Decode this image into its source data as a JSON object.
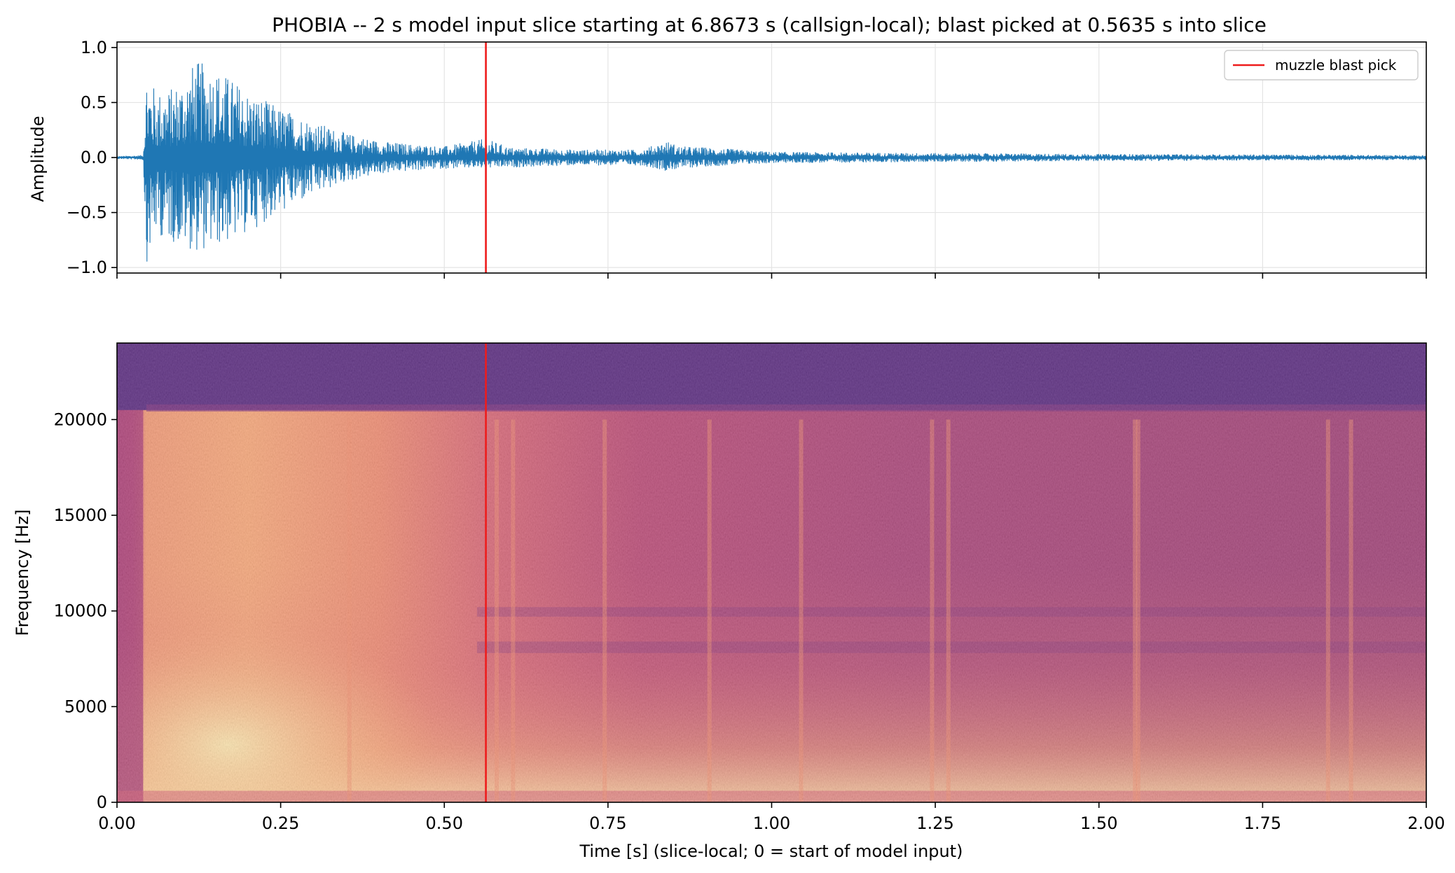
{
  "title": "PHOBIA  --  2 s model input slice starting at 6.8673 s (callsign-local); blast picked at 0.5635 s into slice",
  "colors": {
    "waveform": "#1f77b4",
    "pick_line": "#ee1c1c",
    "grid": "#e4e4e4",
    "spectrogram_colormap": "magma"
  },
  "chart_data": [
    {
      "type": "line",
      "name": "waveform",
      "ylabel": "Amplitude",
      "xlim": [
        0,
        2.0
      ],
      "ylim": [
        -1.05,
        1.05
      ],
      "yticks": [
        1.0,
        0.5,
        0.0,
        -0.5,
        -1.0
      ],
      "ytick_labels": [
        "1.0",
        "0.5",
        "0.0",
        "−0.5",
        "−1.0"
      ],
      "xticks": [
        0,
        0.25,
        0.5,
        0.75,
        1.0,
        1.25,
        1.5,
        1.75,
        2.0
      ],
      "grid": true,
      "envelope": {
        "x": [
          0.0,
          0.02,
          0.04,
          0.045,
          0.06,
          0.08,
          0.1,
          0.12,
          0.15,
          0.18,
          0.2,
          0.25,
          0.3,
          0.35,
          0.4,
          0.45,
          0.5,
          0.5635,
          0.6,
          0.7,
          0.8,
          0.84,
          0.86,
          0.9,
          1.0,
          1.2,
          1.5,
          1.75,
          2.0
        ],
        "upper": [
          0.01,
          0.015,
          0.02,
          0.8,
          0.6,
          0.62,
          0.72,
          0.88,
          0.82,
          0.7,
          0.6,
          0.45,
          0.33,
          0.22,
          0.15,
          0.12,
          0.1,
          0.17,
          0.09,
          0.07,
          0.07,
          0.15,
          0.1,
          0.09,
          0.05,
          0.04,
          0.03,
          0.025,
          0.02
        ],
        "lower": [
          -0.01,
          -0.015,
          -0.02,
          -0.96,
          -0.7,
          -0.76,
          -0.8,
          -0.86,
          -0.82,
          -0.75,
          -0.68,
          -0.5,
          -0.35,
          -0.22,
          -0.15,
          -0.12,
          -0.1,
          -0.1,
          -0.09,
          -0.07,
          -0.07,
          -0.12,
          -0.1,
          -0.08,
          -0.05,
          -0.04,
          -0.03,
          -0.025,
          -0.02
        ]
      },
      "vline": {
        "x": 0.5635,
        "label": "muzzle blast pick"
      },
      "legend": {
        "location": "top-right",
        "entries": [
          "muzzle blast pick"
        ]
      }
    },
    {
      "type": "heatmap",
      "name": "spectrogram",
      "xlabel": "Time [s] (slice-local; 0 = start of model input)",
      "ylabel": "Frequency [Hz]",
      "xlim": [
        0,
        2.0
      ],
      "ylim": [
        0,
        24000
      ],
      "xticks": [
        0,
        0.25,
        0.5,
        0.75,
        1.0,
        1.25,
        1.5,
        1.75,
        2.0
      ],
      "xtick_labels": [
        "0.00",
        "0.25",
        "0.50",
        "0.75",
        "1.00",
        "1.25",
        "1.50",
        "1.75",
        "2.00"
      ],
      "yticks": [
        0,
        5000,
        10000,
        15000,
        20000
      ],
      "ytick_labels": [
        "0",
        "5000",
        "10000",
        "15000",
        "20000"
      ],
      "cutoff_hz": 20500,
      "onset_s": 0.04,
      "striations_s": [
        0.355,
        0.58,
        0.605,
        0.745,
        0.905,
        1.045,
        1.245,
        1.27,
        1.555,
        1.56,
        1.85,
        1.885
      ],
      "vline": {
        "x": 0.5635
      }
    }
  ]
}
